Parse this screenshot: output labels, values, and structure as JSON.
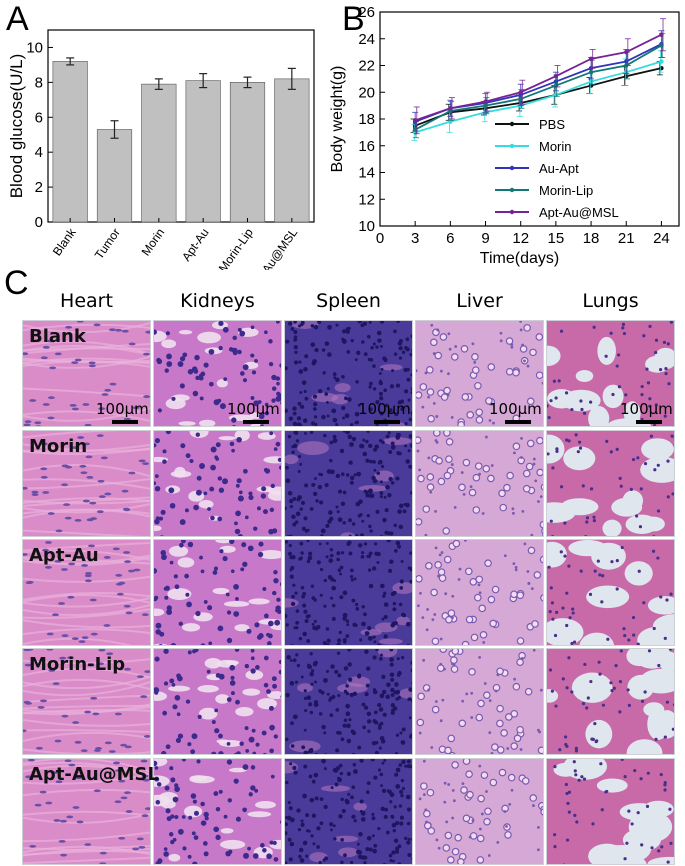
{
  "panel_labels": {
    "a": "A",
    "b": "B",
    "c": "C"
  },
  "chart_data": [
    {
      "type": "bar",
      "categories": [
        "Blank",
        "Tumor",
        "Morin",
        "Apt-Au",
        "Morin-Lip",
        "Apt-Au@MSL"
      ],
      "values": [
        9.2,
        5.3,
        7.9,
        8.1,
        8.0,
        8.2
      ],
      "errors": [
        0.2,
        0.5,
        0.3,
        0.4,
        0.3,
        0.6
      ],
      "ylabel": "Blood glucose(U/L)",
      "xlabel": "",
      "ylim": [
        0,
        11
      ],
      "yticks": [
        "0",
        "2",
        "4",
        "6",
        "8",
        "10"
      ],
      "bar_color": "#c0c0c0",
      "legend": "none",
      "grid": false
    },
    {
      "type": "line",
      "x": [
        0,
        3,
        6,
        9,
        12,
        15,
        18,
        21,
        24
      ],
      "xticks": [
        "0",
        "3",
        "6",
        "9",
        "12",
        "15",
        "18",
        "21",
        "24"
      ],
      "yticks": [
        "10",
        "12",
        "14",
        "16",
        "18",
        "20",
        "22",
        "24",
        "26"
      ],
      "xlim": [
        0,
        25.5
      ],
      "ylim": [
        10,
        26
      ],
      "xlabel": "Time(days)",
      "ylabel": "Body weight(g)",
      "legend": "center-right",
      "grid": false,
      "series": [
        {
          "name": "PBS",
          "color": "#111111",
          "x": [
            3,
            6,
            9,
            12,
            15,
            18,
            21,
            24
          ],
          "values": [
            17.5,
            18.5,
            18.8,
            19.2,
            19.8,
            20.5,
            21.2,
            21.8
          ],
          "errors": [
            0.5,
            0.6,
            0.5,
            0.6,
            0.7,
            0.6,
            0.7,
            0.5
          ]
        },
        {
          "name": "Morin",
          "color": "#33dddd",
          "x": [
            3,
            6,
            9,
            12,
            15,
            18,
            21,
            24
          ],
          "values": [
            17.0,
            17.8,
            18.5,
            19.0,
            19.8,
            20.8,
            21.5,
            22.3
          ],
          "errors": [
            0.6,
            0.8,
            0.7,
            0.8,
            0.9,
            0.9,
            1.0,
            0.8
          ]
        },
        {
          "name": "Au-Apt",
          "color": "#3333bb",
          "x": [
            3,
            6,
            9,
            12,
            15,
            18,
            21,
            24
          ],
          "values": [
            17.8,
            18.8,
            19.2,
            19.8,
            20.8,
            21.8,
            22.3,
            23.6
          ],
          "errors": [
            0.7,
            0.6,
            0.7,
            0.8,
            0.7,
            0.8,
            0.9,
            1.0
          ]
        },
        {
          "name": "Morin-Lip",
          "color": "#117777",
          "x": [
            3,
            6,
            9,
            12,
            15,
            18,
            21,
            24
          ],
          "values": [
            17.2,
            18.6,
            19.0,
            19.5,
            20.5,
            21.5,
            22.0,
            23.5
          ],
          "errors": [
            0.6,
            0.7,
            0.6,
            0.7,
            0.8,
            0.9,
            1.0,
            0.9
          ]
        },
        {
          "name": "Apt-Au@MSL",
          "color": "#772299",
          "x": [
            3,
            6,
            9,
            12,
            15,
            18,
            21,
            24
          ],
          "values": [
            17.9,
            18.8,
            19.3,
            20.0,
            21.2,
            22.5,
            23.0,
            24.3
          ],
          "errors": [
            1.0,
            0.8,
            0.7,
            0.9,
            0.8,
            0.7,
            1.0,
            1.2
          ]
        }
      ]
    }
  ],
  "histology": {
    "columns": [
      "Heart",
      "Kidneys",
      "Spleen",
      "Liver",
      "Lungs"
    ],
    "rows": [
      "Blank",
      "Morin",
      "Apt-Au",
      "Morin-Lip",
      "Apt-Au@MSL"
    ],
    "scale_bar_label": "100μm",
    "colors": {
      "heart_bg": "#d98cc8",
      "heart_nucleus": "#6a4fa8",
      "kidney_bg": "#c878c8",
      "kidney_nucleus": "#3c2a8c",
      "kidney_lumen": "#f0e0f0",
      "spleen_bg": "#4a3a9a",
      "spleen_nucleus": "#1e1660",
      "liver_bg": "#d6a8d6",
      "liver_nucleus": "#7a5ab0",
      "lung_bg": "#dfe6ee",
      "lung_tissue": "#c86aa8",
      "lung_nucleus": "#4a2f8a"
    }
  }
}
